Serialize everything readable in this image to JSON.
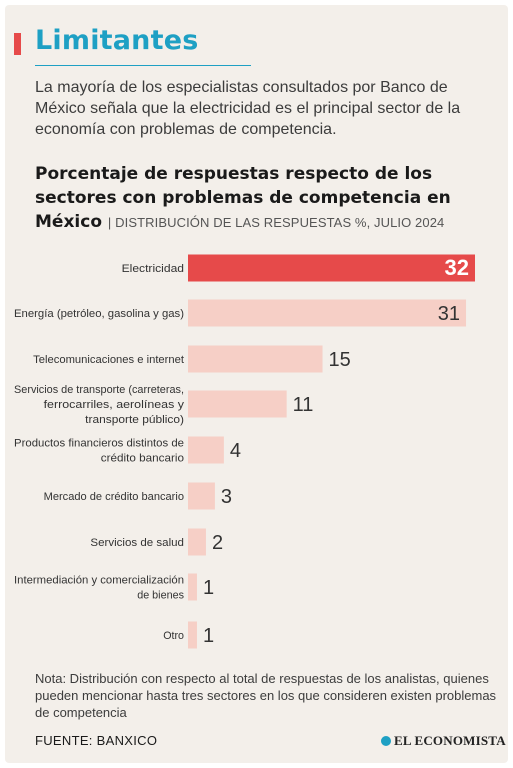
{
  "headline": "Limitantes",
  "intro": "La mayoría de los especialistas consultados por Banco de México señala que la electricidad es el principal sector de la economía con problemas de competencia.",
  "chart_data": {
    "type": "bar",
    "orientation": "horizontal",
    "title": "Porcentaje de respuestas respecto de los sectores con problemas de competencia en México",
    "subtitle": "DISTRIBUCIÓN DE LAS RESPUESTAS %, JULIO 2024",
    "categories": [
      "Electricidad",
      "Energía (petróleo, gasolina y gas)",
      "Telecomunicaciones e internet",
      "Servicios de transporte (carreteras, ferrocarriles, aerolíneas y transporte público)",
      "Productos financieros distintos de crédito bancario",
      "Mercado de crédito bancario",
      "Servicios de salud",
      "Intermediación y comercialización de bienes",
      "Otro"
    ],
    "values": [
      32,
      31,
      15,
      11,
      4,
      3,
      2,
      1,
      1
    ],
    "highlight_color": "#e64a4a",
    "bar_color": "#f6cfc6",
    "xlim": [
      0,
      32
    ],
    "grid": false
  },
  "note": "Nota: Distribución con respecto al total de respuestas de los analistas, quienes pueden mencionar hasta tres sectores en los que consideren existen problemas de competencia",
  "source": "FUENTE: BANXICO",
  "brand": "EL ECONOMISTA",
  "colors": {
    "accent": "#e64a4a",
    "headline": "#1ea0c4",
    "background": "#f3efea"
  }
}
